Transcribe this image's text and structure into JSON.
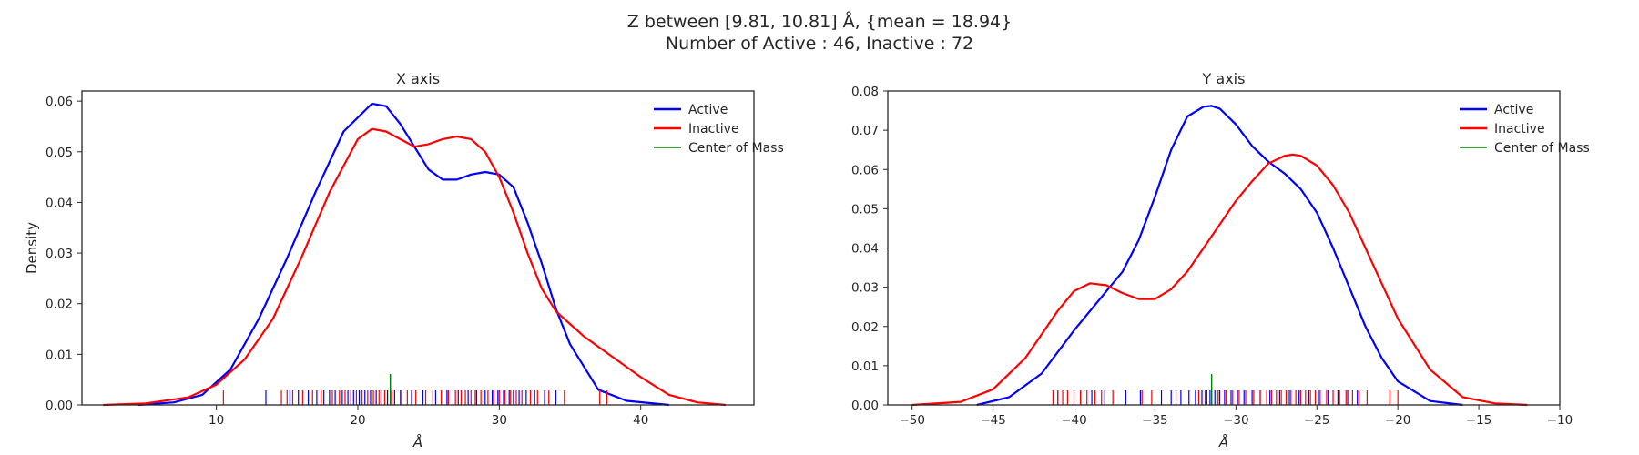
{
  "figure": {
    "title_line1": "Z between [9.81, 10.81] Å, {mean = 18.94}",
    "title_line2": "Number of Active : 46, Inactive : 72"
  },
  "chart_data": [
    {
      "type": "line",
      "title": "X axis",
      "xlabel": "Å",
      "ylabel": "Density",
      "xlim": [
        0.5,
        48
      ],
      "ylim": [
        0,
        0.062
      ],
      "xticks": [
        10,
        20,
        30,
        40
      ],
      "yticks": [
        0.0,
        0.01,
        0.02,
        0.03,
        0.04,
        0.05,
        0.06
      ],
      "grid": false,
      "legend": "top-right",
      "series": [
        {
          "name": "Active",
          "color": "#0000ff",
          "x": [
            4.5,
            7,
            9,
            11,
            13,
            15,
            17,
            19,
            21,
            22,
            23,
            24,
            25,
            26,
            27,
            28,
            29,
            30,
            31,
            32,
            33,
            34,
            35,
            37,
            39,
            42
          ],
          "y": [
            0.0,
            0.0005,
            0.002,
            0.007,
            0.017,
            0.029,
            0.042,
            0.054,
            0.0595,
            0.059,
            0.0555,
            0.051,
            0.0465,
            0.0445,
            0.0445,
            0.0455,
            0.046,
            0.0455,
            0.043,
            0.036,
            0.028,
            0.019,
            0.012,
            0.003,
            0.0008,
            0.0
          ]
        },
        {
          "name": "Inactive",
          "color": "#ff0000",
          "x": [
            2,
            5,
            8,
            10,
            12,
            14,
            16,
            18,
            20,
            21,
            22,
            23,
            24,
            25,
            26,
            27,
            28,
            29,
            30,
            31,
            32,
            33,
            34,
            35,
            36,
            38,
            40,
            42,
            44,
            46
          ],
          "y": [
            0.0,
            0.0003,
            0.0015,
            0.004,
            0.009,
            0.017,
            0.029,
            0.042,
            0.0525,
            0.0545,
            0.054,
            0.0525,
            0.051,
            0.0515,
            0.0525,
            0.053,
            0.0525,
            0.05,
            0.045,
            0.038,
            0.03,
            0.023,
            0.0185,
            0.016,
            0.0135,
            0.0095,
            0.0055,
            0.002,
            0.0005,
            0.0
          ]
        },
        {
          "name": "Center of Mass",
          "color": "#008000",
          "rug": [
            22.3
          ]
        }
      ],
      "rugs": {
        "Active": [
          13.5,
          15.2,
          15.8,
          16.5,
          17.1,
          17.6,
          18.0,
          18.4,
          18.9,
          19.3,
          19.7,
          20.1,
          20.5,
          20.9,
          21.3,
          21.7,
          22.1,
          22.6,
          23.1,
          23.8,
          24.6,
          25.5,
          26.3,
          27.1,
          27.8,
          28.4,
          29.0,
          29.5,
          29.9,
          30.3,
          30.7,
          31.0,
          31.4,
          31.9,
          32.5,
          33.2,
          34.0
        ],
        "Inactive": [
          10.5,
          14.6,
          15.0,
          15.4,
          16.1,
          16.8,
          17.4,
          18.2,
          18.7,
          19.1,
          19.5,
          19.9,
          20.3,
          20.7,
          21.1,
          21.5,
          21.9,
          22.4,
          23.0,
          23.5,
          24.1,
          24.8,
          25.3,
          25.9,
          26.4,
          26.9,
          27.3,
          27.6,
          28.0,
          28.3,
          28.7,
          29.2,
          29.6,
          30.0,
          30.4,
          30.8,
          31.2,
          31.6,
          32.2,
          32.7,
          33.5,
          34.6,
          37.1,
          37.6
        ]
      }
    },
    {
      "type": "line",
      "title": "Y axis",
      "xlabel": "Å",
      "ylabel": "",
      "xlim": [
        -51.5,
        -10
      ],
      "ylim": [
        0,
        0.08
      ],
      "xticks": [
        -50,
        -45,
        -40,
        -35,
        -30,
        -25,
        -20,
        -15,
        -10
      ],
      "yticks": [
        0.0,
        0.01,
        0.02,
        0.03,
        0.04,
        0.05,
        0.06,
        0.07,
        0.08
      ],
      "grid": false,
      "legend": "top-right",
      "series": [
        {
          "name": "Active",
          "color": "#0000ff",
          "x": [
            -46,
            -44,
            -42,
            -40,
            -38,
            -37,
            -36,
            -35,
            -34,
            -33,
            -32,
            -31.5,
            -31,
            -30,
            -29,
            -28,
            -27,
            -26,
            -25,
            -24,
            -23,
            -22,
            -21,
            -20,
            -18,
            -16
          ],
          "y": [
            0.0,
            0.002,
            0.008,
            0.019,
            0.029,
            0.034,
            0.042,
            0.053,
            0.065,
            0.0735,
            0.076,
            0.0762,
            0.0755,
            0.0715,
            0.066,
            0.062,
            0.059,
            0.055,
            0.049,
            0.04,
            0.03,
            0.02,
            0.012,
            0.006,
            0.001,
            0.0
          ]
        },
        {
          "name": "Inactive",
          "color": "#ff0000",
          "x": [
            -50,
            -47,
            -45,
            -43,
            -41,
            -40,
            -39,
            -38,
            -37,
            -36,
            -35,
            -34,
            -33,
            -32,
            -31,
            -30,
            -29,
            -28,
            -27,
            -26.5,
            -26,
            -25,
            -24,
            -23,
            -22,
            -21,
            -20,
            -18,
            -16,
            -14,
            -12
          ],
          "y": [
            0.0,
            0.0008,
            0.004,
            0.012,
            0.024,
            0.029,
            0.031,
            0.0305,
            0.0285,
            0.027,
            0.027,
            0.0295,
            0.034,
            0.04,
            0.046,
            0.052,
            0.057,
            0.0615,
            0.0635,
            0.0638,
            0.0635,
            0.061,
            0.056,
            0.049,
            0.04,
            0.031,
            0.022,
            0.009,
            0.002,
            0.0004,
            0.0
          ]
        },
        {
          "name": "Center of Mass",
          "color": "#008000",
          "rug": [
            -31.5
          ]
        }
      ],
      "rugs": {
        "Active": [
          -41.0,
          -39.6,
          -38.9,
          -38.1,
          -36.8,
          -35.9,
          -34.6,
          -34.0,
          -33.4,
          -32.9,
          -32.5,
          -32.1,
          -31.8,
          -31.6,
          -31.3,
          -31.0,
          -30.7,
          -30.3,
          -29.9,
          -29.5,
          -29.0,
          -28.5,
          -27.9,
          -27.3,
          -26.7,
          -26.1,
          -25.5,
          -24.9,
          -24.3,
          -23.7,
          -23.1,
          -22.5
        ],
        "Inactive": [
          -41.3,
          -41.0,
          -40.7,
          -40.4,
          -40.0,
          -39.6,
          -39.2,
          -38.7,
          -38.3,
          -37.6,
          -35.8,
          -35.2,
          -33.7,
          -32.3,
          -31.9,
          -31.5,
          -31.1,
          -30.6,
          -30.2,
          -29.8,
          -29.4,
          -28.9,
          -28.5,
          -28.1,
          -27.8,
          -27.5,
          -27.2,
          -26.9,
          -26.6,
          -26.3,
          -26.0,
          -25.7,
          -25.4,
          -25.1,
          -24.8,
          -24.4,
          -24.0,
          -23.6,
          -23.2,
          -22.8,
          -22.4,
          -21.9,
          -20.5,
          -20.0
        ]
      }
    }
  ]
}
